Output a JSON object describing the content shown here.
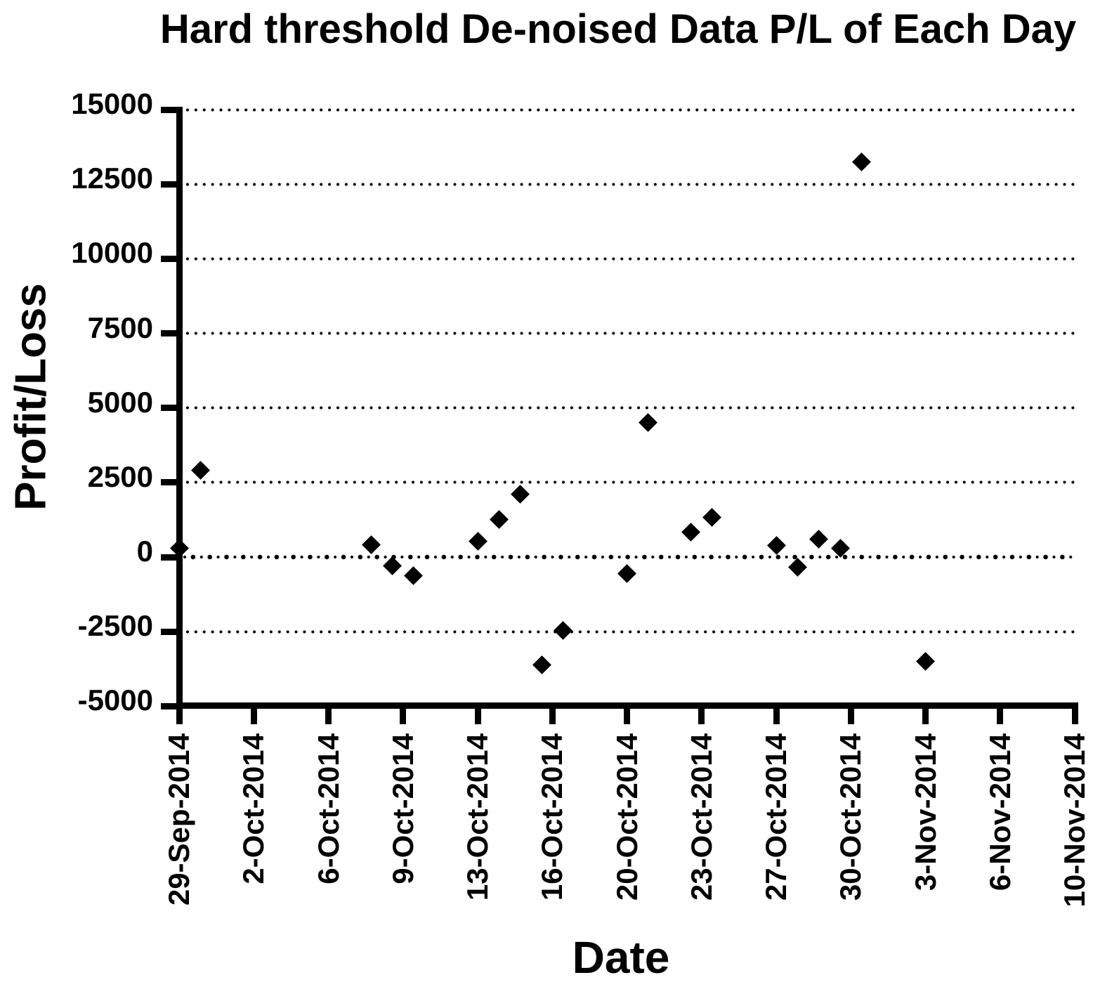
{
  "chart_data": {
    "type": "scatter",
    "title": "Hard threshold De-noised Data P/L of Each Day",
    "xlabel": "Date",
    "ylabel": "Profit/Loss",
    "background_color": "#ffffff",
    "marker": "diamond",
    "marker_color": "#000000",
    "axis_color": "#000000",
    "grid": "dotted-horizontal",
    "zero_line_emphasized": true,
    "legend": "none",
    "ylim": [
      -5000,
      15000
    ],
    "yticks": [
      15000,
      12500,
      10000,
      7500,
      5000,
      2500,
      0,
      -2500,
      -5000
    ],
    "x_axis_start": "29-Sep-2014",
    "x_axis_end": "10-Nov-2014",
    "x_axis_span_days": 42,
    "x_tick_labels": [
      "29-Sep-2014",
      "2-Oct-2014",
      "6-Oct-2014",
      "9-Oct-2014",
      "13-Oct-2014",
      "16-Oct-2014",
      "20-Oct-2014",
      "23-Oct-2014",
      "27-Oct-2014",
      "30-Oct-2014",
      "3-Nov-2014",
      "6-Nov-2014",
      "10-Nov-2014"
    ],
    "points": [
      {
        "date": "29-Sep-2014",
        "day_offset": 0,
        "value": 300
      },
      {
        "date": "30-Sep-2014",
        "day_offset": 1,
        "value": 2900
      },
      {
        "date": "8-Oct-2014",
        "day_offset": 9,
        "value": 420
      },
      {
        "date": "9-Oct-2014",
        "day_offset": 10,
        "value": -300
      },
      {
        "date": "10-Oct-2014",
        "day_offset": 11,
        "value": -630
      },
      {
        "date": "13-Oct-2014",
        "day_offset": 14,
        "value": 520
      },
      {
        "date": "14-Oct-2014",
        "day_offset": 15,
        "value": 1250
      },
      {
        "date": "15-Oct-2014",
        "day_offset": 16,
        "value": 2100
      },
      {
        "date": "16-Oct-2014",
        "day_offset": 17,
        "value": -3620
      },
      {
        "date": "17-Oct-2014",
        "day_offset": 18,
        "value": -2470
      },
      {
        "date": "20-Oct-2014",
        "day_offset": 21,
        "value": -560
      },
      {
        "date": "21-Oct-2014",
        "day_offset": 22,
        "value": 4500
      },
      {
        "date": "23-Oct-2014",
        "day_offset": 24,
        "value": 840
      },
      {
        "date": "24-Oct-2014",
        "day_offset": 25,
        "value": 1320
      },
      {
        "date": "27-Oct-2014",
        "day_offset": 28,
        "value": 380
      },
      {
        "date": "28-Oct-2014",
        "day_offset": 29,
        "value": -350
      },
      {
        "date": "29-Oct-2014",
        "day_offset": 30,
        "value": 590
      },
      {
        "date": "30-Oct-2014",
        "day_offset": 31,
        "value": 300
      },
      {
        "date": "31-Oct-2014",
        "day_offset": 32,
        "value": 13250
      },
      {
        "date": "3-Nov-2014",
        "day_offset": 35,
        "value": -3500
      }
    ]
  }
}
